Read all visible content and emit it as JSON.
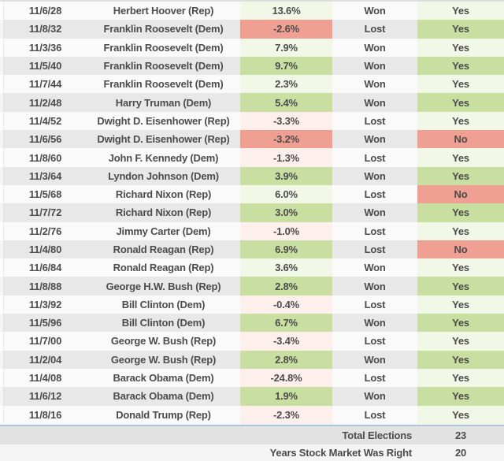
{
  "chart_data": {
    "type": "table",
    "rows": [
      {
        "date": "11/6/28",
        "candidate": "Herbert Hoover (Rep)",
        "change": "13.6%",
        "result": "Won",
        "market_right": "Yes"
      },
      {
        "date": "11/8/32",
        "candidate": "Franklin Roosevelt (Dem)",
        "change": "-2.6%",
        "result": "Lost",
        "market_right": "Yes"
      },
      {
        "date": "11/3/36",
        "candidate": "Franklin Roosevelt (Dem)",
        "change": "7.9%",
        "result": "Won",
        "market_right": "Yes"
      },
      {
        "date": "11/5/40",
        "candidate": "Franklin Roosevelt (Dem)",
        "change": "9.7%",
        "result": "Won",
        "market_right": "Yes"
      },
      {
        "date": "11/7/44",
        "candidate": "Franklin Roosevelt (Dem)",
        "change": "2.3%",
        "result": "Won",
        "market_right": "Yes"
      },
      {
        "date": "11/2/48",
        "candidate": "Harry Truman (Dem)",
        "change": "5.4%",
        "result": "Won",
        "market_right": "Yes"
      },
      {
        "date": "11/4/52",
        "candidate": "Dwight D. Eisenhower (Rep)",
        "change": "-3.3%",
        "result": "Lost",
        "market_right": "Yes"
      },
      {
        "date": "11/6/56",
        "candidate": "Dwight D. Eisenhower (Rep)",
        "change": "-3.2%",
        "result": "Won",
        "market_right": "No"
      },
      {
        "date": "11/8/60",
        "candidate": "John F. Kennedy (Dem)",
        "change": "-1.3%",
        "result": "Lost",
        "market_right": "Yes"
      },
      {
        "date": "11/3/64",
        "candidate": "Lyndon Johnson (Dem)",
        "change": "3.9%",
        "result": "Won",
        "market_right": "Yes"
      },
      {
        "date": "11/5/68",
        "candidate": "Richard Nixon (Rep)",
        "change": "6.0%",
        "result": "Lost",
        "market_right": "No"
      },
      {
        "date": "11/7/72",
        "candidate": "Richard Nixon (Rep)",
        "change": "3.0%",
        "result": "Won",
        "market_right": "Yes"
      },
      {
        "date": "11/2/76",
        "candidate": "Jimmy Carter (Dem)",
        "change": "-1.0%",
        "result": "Lost",
        "market_right": "Yes"
      },
      {
        "date": "11/4/80",
        "candidate": "Ronald Reagan (Rep)",
        "change": "6.9%",
        "result": "Lost",
        "market_right": "No"
      },
      {
        "date": "11/6/84",
        "candidate": "Ronald Reagan (Rep)",
        "change": "3.6%",
        "result": "Won",
        "market_right": "Yes"
      },
      {
        "date": "11/8/88",
        "candidate": "George H.W. Bush (Rep)",
        "change": "2.8%",
        "result": "Won",
        "market_right": "Yes"
      },
      {
        "date": "11/3/92",
        "candidate": "Bill Clinton (Dem)",
        "change": "-0.4%",
        "result": "Lost",
        "market_right": "Yes"
      },
      {
        "date": "11/5/96",
        "candidate": "Bill Clinton (Dem)",
        "change": "6.7%",
        "result": "Won",
        "market_right": "Yes"
      },
      {
        "date": "11/7/00",
        "candidate": "George W. Bush (Rep)",
        "change": "-3.4%",
        "result": "Lost",
        "market_right": "Yes"
      },
      {
        "date": "11/2/04",
        "candidate": "George W. Bush (Rep)",
        "change": "2.8%",
        "result": "Won",
        "market_right": "Yes"
      },
      {
        "date": "11/4/08",
        "candidate": "Barack Obama (Dem)",
        "change": "-24.8%",
        "result": "Lost",
        "market_right": "Yes"
      },
      {
        "date": "11/6/12",
        "candidate": "Barack Obama (Dem)",
        "change": "1.9%",
        "result": "Won",
        "market_right": "Yes"
      },
      {
        "date": "11/8/16",
        "candidate": "Donald Trump (Rep)",
        "change": "-2.3%",
        "result": "Lost",
        "market_right": "Yes"
      }
    ],
    "summary": [
      {
        "label": "Total Elections",
        "value": "23"
      },
      {
        "label": "Years Stock Market Was Right",
        "value": "20"
      }
    ]
  },
  "colors": {
    "text": "#4c4c4c",
    "row_light": "#fbfafa",
    "row_dark": "#e9e8e8",
    "positive_strong": "#c9dfa1",
    "positive_light": "#f1f8e8",
    "negative_strong": "#f0a093",
    "negative_light": "#fdefec",
    "divider_blue": "#aec5d3",
    "summary1_bg": "#e3e2e2",
    "summary2_bg": "#f6f5f5"
  }
}
